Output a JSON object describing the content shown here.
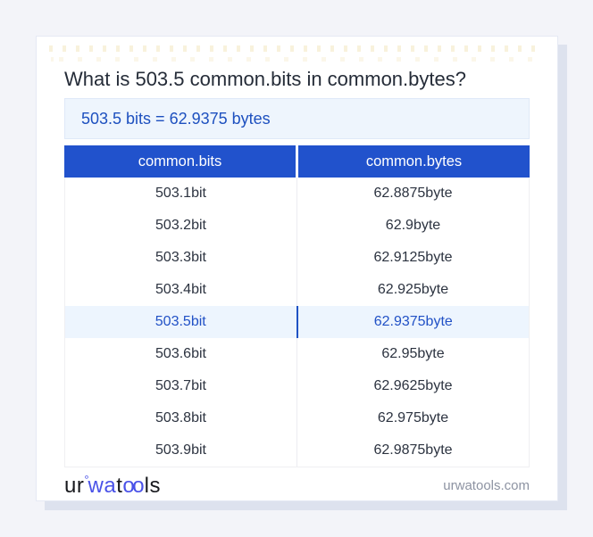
{
  "title": "What is 503.5 common.bits in common.bytes?",
  "answer": "503.5 bits = 62.9375 bytes",
  "table": {
    "headers": [
      "common.bits",
      "common.bytes"
    ],
    "rows": [
      {
        "bits": "503.1bit",
        "bytes": "62.8875byte",
        "highlight": false
      },
      {
        "bits": "503.2bit",
        "bytes": "62.9byte",
        "highlight": false
      },
      {
        "bits": "503.3bit",
        "bytes": "62.9125byte",
        "highlight": false
      },
      {
        "bits": "503.4bit",
        "bytes": "62.925byte",
        "highlight": false
      },
      {
        "bits": "503.5bit",
        "bytes": "62.9375byte",
        "highlight": true
      },
      {
        "bits": "503.6bit",
        "bytes": "62.95byte",
        "highlight": false
      },
      {
        "bits": "503.7bit",
        "bytes": "62.9625byte",
        "highlight": false
      },
      {
        "bits": "503.8bit",
        "bytes": "62.975byte",
        "highlight": false
      },
      {
        "bits": "503.9bit",
        "bytes": "62.9875byte",
        "highlight": false
      }
    ]
  },
  "footer": {
    "logo": {
      "part_ur": "ur",
      "ring": "°",
      "part_wa": "wa",
      "part_t": "t",
      "part_oo": "oo",
      "part_ls": "ls"
    },
    "site": "urwatools.com"
  },
  "colors": {
    "header_blue": "#2152cc",
    "answer_bg": "#eef5fd",
    "answer_text": "#1d50bf",
    "highlight_bg": "#edf5fe",
    "highlight_text": "#2151c6",
    "logo_blue": "#4a52e8",
    "page_bg": "#f3f4f9",
    "shadow": "#dde2ee"
  }
}
